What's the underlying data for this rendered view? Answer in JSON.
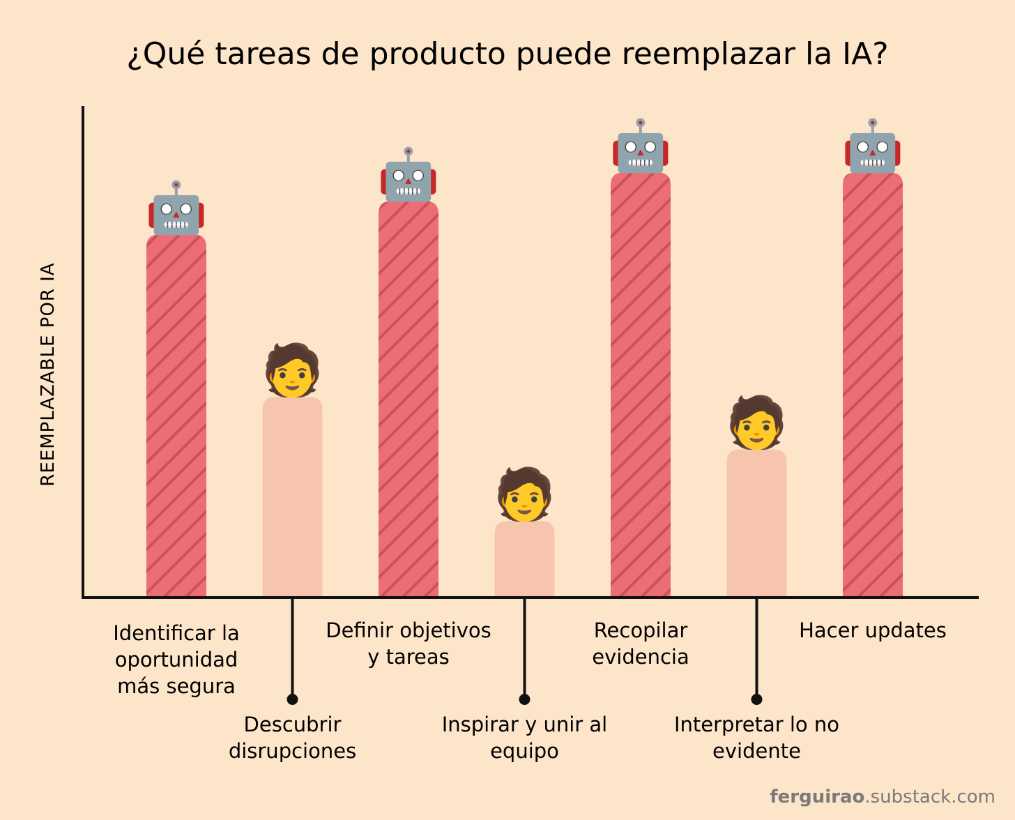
{
  "chart_data": {
    "type": "bar",
    "title": "¿Qué tareas de producto puede reemplazar la IA?",
    "xlabel": "",
    "ylabel": "REEMPLAZABLE POR IA",
    "ylim": [
      0,
      100
    ],
    "grid": false,
    "categories": [
      {
        "lines": [
          "Identificar la",
          "oportunidad",
          "más segura"
        ],
        "value": 76,
        "replaceable": true,
        "icon": "robot-icon",
        "emoji": "🤖"
      },
      {
        "lines": [
          "Descubrir",
          "disrupciones"
        ],
        "value": 42,
        "replaceable": false,
        "icon": "person-icon",
        "emoji": "🧑"
      },
      {
        "lines": [
          "Definir objetivos",
          "y tareas"
        ],
        "value": 83,
        "replaceable": true,
        "icon": "robot-icon",
        "emoji": "🤖"
      },
      {
        "lines": [
          "Inspirar y unir al",
          "equipo"
        ],
        "value": 16,
        "replaceable": false,
        "icon": "person-icon",
        "emoji": "🧑"
      },
      {
        "lines": [
          "Recopilar",
          "evidencia"
        ],
        "value": 89,
        "replaceable": true,
        "icon": "robot-icon",
        "emoji": "🤖"
      },
      {
        "lines": [
          "Interpretar lo no",
          "evidente"
        ],
        "value": 31,
        "replaceable": false,
        "icon": "person-icon",
        "emoji": "🧑"
      },
      {
        "lines": [
          "Hacer updates"
        ],
        "value": 89,
        "replaceable": true,
        "icon": "robot-icon",
        "emoji": "🤖"
      }
    ],
    "colors": {
      "background": "#fde5c9",
      "replaceable_bar": "#ec6e74",
      "replaceable_stripe": "#c9525a",
      "human_bar": "#f7c5ae",
      "axis": "#111111"
    }
  },
  "brand": {
    "bold": "ferguirao",
    "rest": ".substack.com"
  }
}
